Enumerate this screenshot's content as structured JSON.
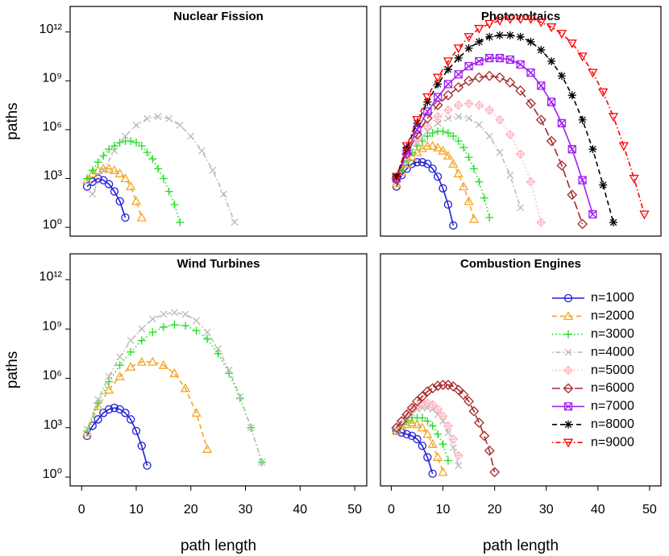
{
  "chart_data": [
    {
      "type": "line",
      "title": "Nuclear Fission",
      "y_label": "paths",
      "y_scale": "log",
      "xlim": [
        -2.1,
        52.2
      ],
      "ylim": [
        0.29,
        37000000000000.0
      ],
      "yticks": [
        {
          "value": 1,
          "label": "10⁰"
        },
        {
          "value": 1000,
          "label": "10³"
        },
        {
          "value": 1000000,
          "label": "10⁶"
        },
        {
          "value": 1000000000,
          "label": "10⁹"
        },
        {
          "value": 1000000000000,
          "label": "10¹²"
        }
      ],
      "series": [
        {
          "name": "n=1000",
          "color": "#1f1fd6",
          "marker": "circle",
          "line": "solid",
          "x": [
            1,
            2,
            3,
            4,
            5,
            6,
            7,
            8
          ],
          "values": [
            320.0,
            630.0,
            1000.0,
            790.0,
            450.0,
            160.0,
            40.0,
            4
          ]
        },
        {
          "name": "n=2000",
          "color": "#f5a623",
          "marker": "triangle",
          "line": "dashed",
          "x": [
            1,
            2,
            3,
            4,
            5,
            6,
            7,
            8,
            9,
            10,
            11
          ],
          "values": [
            790.0,
            2000.0,
            3200.0,
            4000.0,
            4000.0,
            3200.0,
            2000.0,
            1000.0,
            320.0,
            40.0,
            4
          ]
        },
        {
          "name": "n=3000",
          "color": "#22dd22",
          "marker": "plus",
          "line": "dotted",
          "x": [
            1,
            2,
            3,
            4,
            5,
            6,
            7,
            8,
            9,
            10,
            11,
            12,
            13,
            14,
            15,
            16,
            17,
            18
          ],
          "values": [
            1000.0,
            3200.0,
            10000.0,
            25000.0,
            63000.0,
            100000.0,
            160000.0,
            200000.0,
            200000.0,
            160000.0,
            100000.0,
            40000.0,
            16000.0,
            4000.0,
            1000.0,
            160.0,
            25.0,
            2
          ]
        },
        {
          "name": "n=4000",
          "color": "#bbbbbb",
          "marker": "x",
          "line": "dotdash",
          "x": [
            2,
            4,
            6,
            8,
            10,
            12,
            14,
            16,
            18,
            20,
            22,
            24,
            26,
            28
          ],
          "values": [
            110.0,
            3200.0,
            50000.0,
            400000.0,
            1900000.0,
            4700000.0,
            6300000.0,
            4700000.0,
            1900000.0,
            400000.0,
            50000.0,
            3200.0,
            110.0,
            2.1
          ]
        }
      ]
    },
    {
      "type": "line",
      "title": "Photovoltaics",
      "y_scale": "log",
      "xlim": [
        -2.1,
        52.2
      ],
      "ylim": [
        0.29,
        37000000000000.0
      ],
      "series": [
        {
          "name": "n=1000",
          "color": "#1f1fd6",
          "marker": "circle",
          "line": "solid",
          "x": [
            1,
            2,
            3,
            4,
            5,
            6,
            7,
            8,
            9,
            10,
            11,
            12
          ],
          "values": [
            320.0,
            1600.0,
            4000.0,
            7900.0,
            10000.0,
            10000.0,
            7900.0,
            4000.0,
            1300.0,
            250.0,
            25.0,
            1.3
          ]
        },
        {
          "name": "n=2000",
          "color": "#f5a623",
          "marker": "triangle",
          "line": "dashed",
          "x": [
            1,
            2,
            3,
            4,
            5,
            6,
            7,
            8,
            9,
            10,
            11,
            12,
            13,
            14,
            15,
            16
          ],
          "values": [
            500.0,
            2500.0,
            7900.0,
            20000.0,
            40000.0,
            71000.0,
            100000.0,
            100000.0,
            79000.0,
            50000.0,
            25000.0,
            7900.0,
            2000.0,
            320.0,
            40.0,
            3.2
          ]
        },
        {
          "name": "n=3000",
          "color": "#22dd22",
          "marker": "plus",
          "line": "dotted",
          "x": [
            1,
            2,
            3,
            4,
            5,
            6,
            7,
            8,
            9,
            10,
            11,
            12,
            13,
            14,
            15,
            16,
            17,
            18,
            19
          ],
          "values": [
            630.0,
            3200.0,
            13000.0,
            40000.0,
            100000.0,
            200000.0,
            400000.0,
            630000.0,
            790000.0,
            790000.0,
            630000.0,
            400000.0,
            200000.0,
            79000.0,
            20000.0,
            4000.0,
            630.0,
            63.0,
            4
          ]
        },
        {
          "name": "n=4000",
          "color": "#bbbbbb",
          "marker": "x",
          "line": "dotdash",
          "x": [
            1,
            3,
            5,
            7,
            9,
            11,
            13,
            15,
            17,
            19,
            21,
            23,
            25
          ],
          "values": [
            1000.0,
            16000.0,
            160000.0,
            790000.0,
            2500000.0,
            5000000.0,
            6300000.0,
            5000000.0,
            2000000.0,
            400000.0,
            40000.0,
            1600.0,
            16.0
          ]
        },
        {
          "name": "n=5000",
          "color": "#ffb6c1",
          "marker": "diamondplus",
          "line": "dotted",
          "x": [
            1,
            3,
            5,
            7,
            9,
            11,
            13,
            15,
            17,
            19,
            21,
            23,
            25,
            27,
            29
          ],
          "values": [
            1000.0,
            25000.0,
            250000.0,
            1600000.0,
            6300000.0,
            16000000.0,
            32000000.0,
            40000000.0,
            32000000.0,
            16000000.0,
            4000000.0,
            500000.0,
            32000.0,
            630.0,
            2
          ]
        },
        {
          "name": "n=6000",
          "color": "#a52a2a",
          "marker": "diamond",
          "line": "longdash",
          "x": [
            1,
            3,
            5,
            7,
            9,
            11,
            13,
            15,
            17,
            19,
            21,
            23,
            25,
            27,
            29,
            31,
            33,
            35,
            37
          ],
          "values": [
            1000.0,
            32000.0,
            500000.0,
            5000000.0,
            32000000.0,
            130000000.0,
            400000000.0,
            1000000000.0,
            1600000000.0,
            2000000000.0,
            1600000000.0,
            790000000.0,
            250000000.0,
            40000000.0,
            4000000.0,
            200000.0,
            6300.0,
            100.0,
            1.6
          ]
        },
        {
          "name": "n=7000",
          "color": "#a020f0",
          "marker": "squarex",
          "line": "solid",
          "x": [
            1,
            3,
            5,
            7,
            9,
            11,
            13,
            15,
            17,
            19,
            21,
            23,
            25,
            27,
            29,
            31,
            33,
            35,
            37,
            39
          ],
          "values": [
            1000.0,
            50000.0,
            1000000.0,
            13000000.0,
            100000000.0,
            630000000.0,
            2500000000.0,
            7900000000.0,
            16000000000.0,
            25000000000.0,
            25000000000.0,
            20000000000.0,
            10000000000.0,
            3200000000.0,
            500000000.0,
            50000000.0,
            2500000.0,
            63000.0,
            790.0,
            6.3
          ]
        },
        {
          "name": "n=8000",
          "color": "#000000",
          "marker": "asterisk",
          "line": "dashed",
          "x": [
            1,
            3,
            5,
            7,
            9,
            11,
            13,
            15,
            17,
            19,
            21,
            23,
            25,
            27,
            29,
            31,
            33,
            35,
            37,
            39,
            41,
            43
          ],
          "values": [
            1300.0,
            79000.0,
            2500000.0,
            50000000.0,
            630000000.0,
            5000000000.0,
            25000000000.0,
            100000000000.0,
            250000000000.0,
            500000000000.0,
            630000000000.0,
            630000000000.0,
            500000000000.0,
            250000000000.0,
            79000000000.0,
            16000000000.0,
            2000000000.0,
            130000000.0,
            4000000.0,
            63000.0,
            400.0,
            2
          ]
        },
        {
          "name": "n=9000",
          "color": "#ff0000",
          "marker": "tridown",
          "line": "dotdash",
          "x": [
            1,
            3,
            5,
            7,
            9,
            11,
            13,
            15,
            17,
            19,
            21,
            23,
            25,
            27,
            29,
            31,
            33,
            35,
            37,
            39,
            41,
            43,
            45,
            47,
            49
          ],
          "values": [
            1300.0,
            100000.0,
            4000000.0,
            100000000.0,
            1600000000.0,
            16000000000.0,
            100000000000.0,
            500000000000.0,
            1600000000000.0,
            3200000000000.0,
            5000000000000.0,
            6300000000000.0,
            6300000000000.0,
            6300000000000.0,
            4000000000000.0,
            2000000000000.0,
            790000000000.0,
            200000000000.0,
            32000000000.0,
            3200000000.0,
            200000000.0,
            6300000.0,
            100000.0,
            1000.0,
            6.3
          ]
        }
      ]
    },
    {
      "type": "line",
      "title": "Wind Turbines",
      "y_label": "paths",
      "x_label": "path length",
      "y_scale": "log",
      "xlim": [
        -2.1,
        52.2
      ],
      "ylim": [
        0.29,
        37000000000000.0
      ],
      "xticks": [
        0,
        10,
        20,
        30,
        40,
        50
      ],
      "yticks": [
        {
          "value": 1,
          "label": "10⁰"
        },
        {
          "value": 1000,
          "label": "10³"
        },
        {
          "value": 1000000,
          "label": "10⁶"
        },
        {
          "value": 1000000000,
          "label": "10⁹"
        },
        {
          "value": 1000000000000,
          "label": "10¹²"
        }
      ],
      "series": [
        {
          "name": "n=1000",
          "color": "#1f1fd6",
          "marker": "circle",
          "line": "solid",
          "x": [
            1,
            2,
            3,
            4,
            5,
            6,
            7,
            8,
            9,
            10,
            11,
            12
          ],
          "values": [
            320.0,
            1300.0,
            3200.0,
            7900.0,
            13000.0,
            16000.0,
            13000.0,
            7900.0,
            3200.0,
            630.0,
            79.0,
            5
          ]
        },
        {
          "name": "n=2000",
          "color": "#f5a623",
          "marker": "triangle",
          "line": "dashed",
          "x": [
            1,
            3,
            5,
            7,
            9,
            11,
            13,
            15,
            17,
            19,
            21,
            23
          ],
          "values": [
            500.0,
            20000.0,
            200000.0,
            1300000.0,
            5000000.0,
            10000000.0,
            10000000.0,
            6300000.0,
            2000000.0,
            250000.0,
            7900.0,
            50.0
          ]
        },
        {
          "name": "n=3000",
          "color": "#22dd22",
          "marker": "plus",
          "line": "dotted",
          "x": [
            1,
            3,
            5,
            7,
            9,
            11,
            13,
            15,
            17,
            19,
            21,
            23,
            25,
            27,
            29,
            31,
            33
          ],
          "values": [
            630.0,
            32000.0,
            630000.0,
            6300000.0,
            40000000.0,
            200000000.0,
            630000000.0,
            1300000000.0,
            1800000000.0,
            1600000000.0,
            790000000.0,
            250000000.0,
            32000000.0,
            2000000.0,
            63000.0,
            1000.0,
            7.9
          ]
        },
        {
          "name": "n=4000",
          "color": "#bbbbbb",
          "marker": "x",
          "line": "dotdash",
          "x": [
            1,
            3,
            5,
            7,
            9,
            11,
            13,
            15,
            17,
            19,
            21,
            23,
            25,
            27,
            29,
            31,
            33
          ],
          "values": [
            790.0,
            50000.0,
            1300000.0,
            20000000.0,
            200000000.0,
            1000000000.0,
            4000000000.0,
            7900000000.0,
            10000000000.0,
            7900000000.0,
            3200000000.0,
            630000000.0,
            63000000.0,
            3200000.0,
            79000.0,
            1000.0,
            7.9
          ]
        }
      ]
    },
    {
      "type": "line",
      "title": "Combustion Engines",
      "x_label": "path length",
      "y_scale": "log",
      "legend": "right",
      "xlim": [
        -2.1,
        52.2
      ],
      "ylim": [
        0.29,
        37000000000000.0
      ],
      "xticks": [
        0,
        10,
        20,
        30,
        40,
        50
      ],
      "series": [
        {
          "name": "n=1000",
          "color": "#1f1fd6",
          "marker": "circle",
          "line": "solid",
          "x": [
            1,
            2,
            3,
            4,
            5,
            6,
            7,
            8
          ],
          "values": [
            630.0,
            500.0,
            400.0,
            320.0,
            200.0,
            79.0,
            16.0,
            1.6
          ]
        },
        {
          "name": "n=2000",
          "color": "#f5a623",
          "marker": "triangle",
          "line": "dashed",
          "x": [
            1,
            2,
            3,
            4,
            5,
            6,
            7,
            8,
            9,
            10
          ],
          "values": [
            630.0,
            1300.0,
            1600.0,
            2000.0,
            1600.0,
            1000.0,
            400.0,
            100.0,
            16.0,
            2
          ]
        },
        {
          "name": "n=3000",
          "color": "#22dd22",
          "marker": "plus",
          "line": "dotted",
          "x": [
            1,
            2,
            3,
            4,
            5,
            6,
            7,
            8,
            9,
            10,
            11
          ],
          "values": [
            790.0,
            1600.0,
            2500.0,
            4000.0,
            4000.0,
            4000.0,
            2500.0,
            1300.0,
            400.0,
            100.0,
            10.0
          ]
        },
        {
          "name": "n=4000",
          "color": "#bbbbbb",
          "marker": "x",
          "line": "dotdash",
          "x": [
            1,
            2,
            3,
            4,
            5,
            6,
            7,
            8,
            9,
            10,
            11,
            12,
            13
          ],
          "values": [
            790.0,
            2000.0,
            4000.0,
            7900.0,
            13000.0,
            16000.0,
            16000.0,
            13000.0,
            6300.0,
            2500.0,
            500.0,
            63.0,
            5
          ]
        },
        {
          "name": "n=5000",
          "color": "#ffb6c1",
          "marker": "diamondplus",
          "line": "dotted",
          "x": [
            1,
            2,
            3,
            4,
            5,
            6,
            7,
            8,
            9,
            10,
            11,
            12,
            13
          ],
          "values": [
            1000.0,
            2500.0,
            6300.0,
            13000.0,
            20000.0,
            32000.0,
            32000.0,
            25000.0,
            13000.0,
            5000.0,
            1300.0,
            200.0,
            20.0
          ]
        },
        {
          "name": "n=6000",
          "color": "#a52a2a",
          "marker": "diamond",
          "line": "longdash",
          "x": [
            1,
            2,
            3,
            4,
            5,
            6,
            7,
            8,
            9,
            10,
            11,
            12,
            13,
            14,
            15,
            16,
            17,
            18,
            19,
            20
          ],
          "values": [
            1000.0,
            2500.0,
            6300.0,
            16000.0,
            40000.0,
            79000.0,
            160000.0,
            250000.0,
            350000.0,
            400000.0,
            400000.0,
            320000.0,
            200000.0,
            100000.0,
            40000.0,
            10000.0,
            2000.0,
            320.0,
            40.0,
            2
          ]
        }
      ]
    }
  ]
}
